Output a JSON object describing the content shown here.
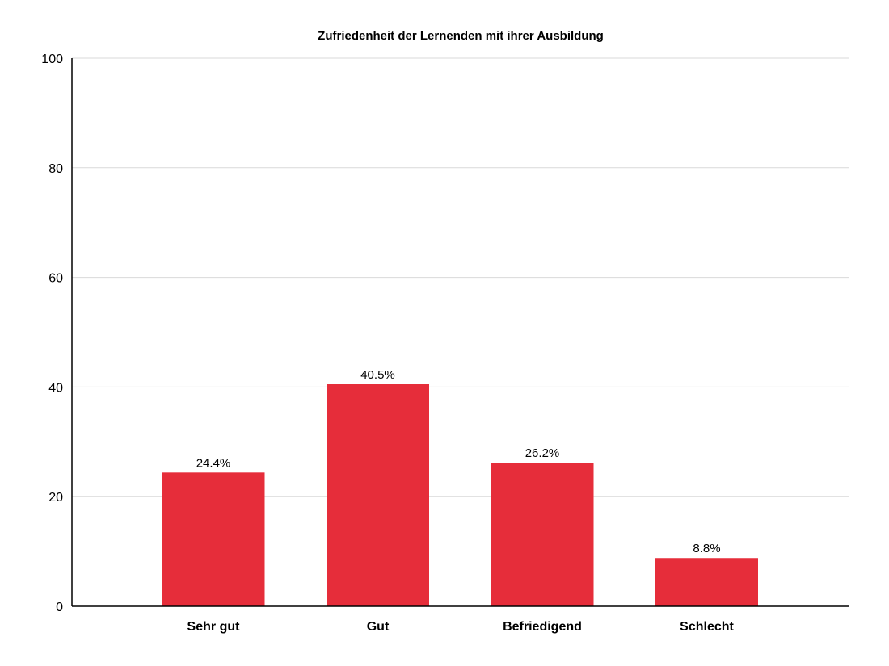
{
  "chart_data": {
    "type": "bar",
    "title": "Zufriedenheit der Lernenden mit ihrer Ausbildung",
    "categories": [
      "Sehr gut",
      "Gut",
      "Befriedigend",
      "Schlecht"
    ],
    "values": [
      24.4,
      40.5,
      26.2,
      8.8
    ],
    "data_labels": [
      "24.4%",
      "40.5%",
      "26.2%",
      "8.8%"
    ],
    "xlabel": "",
    "ylabel": "",
    "ylim": [
      0,
      100
    ],
    "yticks": [
      0,
      20,
      40,
      60,
      80,
      100
    ],
    "grid": true,
    "legend": "none",
    "colors": {
      "bar": "#e62d3a",
      "grid": "#d9d9d9",
      "axis": "#000000"
    }
  }
}
